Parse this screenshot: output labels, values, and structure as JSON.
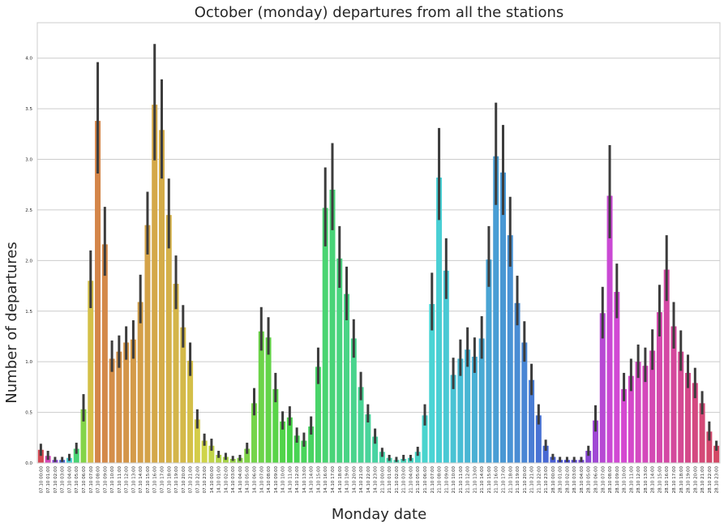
{
  "chart_data": {
    "type": "bar",
    "title": "October (monday) departures from all the stations",
    "xlabel": "Monday date",
    "ylabel": "Number of departures",
    "ylim": [
      0,
      4.35
    ],
    "yticks": [
      "0.0",
      "0.5",
      "1.0",
      "1.5",
      "2.0",
      "2.5",
      "3.0",
      "3.5",
      "4.0"
    ],
    "grid": "horizontal",
    "error_bars": true,
    "categories": [
      "07.10 00:00",
      "07.10 01:00",
      "07.10 02:00",
      "07.10 03:00",
      "07.10 04:00",
      "07.10 05:00",
      "07.10 06:00",
      "07.10 07:00",
      "07.10 08:00",
      "07.10 09:00",
      "07.10 10:00",
      "07.10 11:00",
      "07.10 12:00",
      "07.10 13:00",
      "07.10 14:00",
      "07.10 15:00",
      "07.10 16:00",
      "07.10 17:00",
      "07.10 18:00",
      "07.10 19:00",
      "07.10 20:00",
      "07.10 21:00",
      "07.10 22:00",
      "07.10 23:00",
      "14.10 00:00",
      "14.10 01:00",
      "14.10 02:00",
      "14.10 03:00",
      "14.10 04:00",
      "14.10 05:00",
      "14.10 06:00",
      "14.10 07:00",
      "14.10 08:00",
      "14.10 09:00",
      "14.10 10:00",
      "14.10 11:00",
      "14.10 12:00",
      "14.10 13:00",
      "14.10 14:00",
      "14.10 15:00",
      "14.10 16:00",
      "14.10 17:00",
      "14.10 18:00",
      "14.10 19:00",
      "14.10 20:00",
      "14.10 21:00",
      "14.10 22:00",
      "14.10 23:00",
      "21.10 00:00",
      "21.10 01:00",
      "21.10 02:00",
      "21.10 03:00",
      "21.10 04:00",
      "21.10 05:00",
      "21.10 06:00",
      "21.10 07:00",
      "21.10 08:00",
      "21.10 09:00",
      "21.10 10:00",
      "21.10 11:00",
      "21.10 12:00",
      "21.10 13:00",
      "21.10 14:00",
      "21.10 15:00",
      "21.10 16:00",
      "21.10 17:00",
      "21.10 18:00",
      "21.10 19:00",
      "21.10 20:00",
      "21.10 21:00",
      "21.10 22:00",
      "21.10 23:00",
      "28.10 00:00",
      "28.10 01:00",
      "28.10 02:00",
      "28.10 03:00",
      "28.10 04:00",
      "28.10 05:00",
      "28.10 06:00",
      "28.10 07:00",
      "28.10 08:00",
      "28.10 09:00",
      "28.10 10:00",
      "28.10 11:00",
      "28.10 12:00",
      "28.10 13:00",
      "28.10 14:00",
      "28.10 15:00",
      "28.10 16:00",
      "28.10 17:00",
      "28.10 18:00",
      "28.10 19:00",
      "28.10 20:00",
      "28.10 21:00",
      "28.10 22:00",
      "28.10 23:00"
    ],
    "values": [
      0.13,
      0.07,
      0.03,
      0.03,
      0.05,
      0.14,
      0.53,
      1.8,
      3.38,
      2.16,
      1.03,
      1.1,
      1.19,
      1.22,
      1.59,
      2.35,
      3.54,
      3.29,
      2.45,
      1.77,
      1.34,
      1.01,
      0.43,
      0.22,
      0.17,
      0.08,
      0.06,
      0.04,
      0.05,
      0.14,
      0.59,
      1.3,
      1.24,
      0.73,
      0.41,
      0.45,
      0.27,
      0.22,
      0.36,
      0.95,
      2.52,
      2.7,
      2.02,
      1.67,
      1.23,
      0.75,
      0.48,
      0.26,
      0.11,
      0.05,
      0.03,
      0.04,
      0.05,
      0.11,
      0.47,
      1.57,
      2.82,
      1.9,
      0.87,
      1.03,
      1.12,
      1.05,
      1.23,
      2.01,
      3.03,
      2.87,
      2.25,
      1.58,
      1.19,
      0.82,
      0.47,
      0.17,
      0.06,
      0.03,
      0.03,
      0.03,
      0.03,
      0.12,
      0.42,
      1.48,
      2.64,
      1.69,
      0.73,
      0.86,
      1.0,
      0.96,
      1.11,
      1.49,
      1.91,
      1.35,
      1.1,
      0.89,
      0.79,
      0.59,
      0.31,
      0.17
    ],
    "errors": [
      [
        0.07,
        0.19
      ],
      [
        0.03,
        0.12
      ],
      [
        0.01,
        0.06
      ],
      [
        0.01,
        0.06
      ],
      [
        0.02,
        0.09
      ],
      [
        0.09,
        0.2
      ],
      [
        0.41,
        0.68
      ],
      [
        1.53,
        2.1
      ],
      [
        2.86,
        3.96
      ],
      [
        1.85,
        2.53
      ],
      [
        0.9,
        1.21
      ],
      [
        0.94,
        1.26
      ],
      [
        1.02,
        1.35
      ],
      [
        1.03,
        1.41
      ],
      [
        1.38,
        1.86
      ],
      [
        2.06,
        2.68
      ],
      [
        2.99,
        4.14
      ],
      [
        2.81,
        3.79
      ],
      [
        2.12,
        2.81
      ],
      [
        1.52,
        2.05
      ],
      [
        1.14,
        1.56
      ],
      [
        0.86,
        1.19
      ],
      [
        0.34,
        0.53
      ],
      [
        0.17,
        0.29
      ],
      [
        0.12,
        0.24
      ],
      [
        0.05,
        0.12
      ],
      [
        0.03,
        0.1
      ],
      [
        0.02,
        0.07
      ],
      [
        0.02,
        0.08
      ],
      [
        0.09,
        0.2
      ],
      [
        0.47,
        0.74
      ],
      [
        1.11,
        1.54
      ],
      [
        1.07,
        1.44
      ],
      [
        0.6,
        0.89
      ],
      [
        0.33,
        0.51
      ],
      [
        0.37,
        0.56
      ],
      [
        0.2,
        0.35
      ],
      [
        0.16,
        0.3
      ],
      [
        0.28,
        0.46
      ],
      [
        0.78,
        1.14
      ],
      [
        2.14,
        2.92
      ],
      [
        2.3,
        3.16
      ],
      [
        1.73,
        2.34
      ],
      [
        1.41,
        1.94
      ],
      [
        1.04,
        1.42
      ],
      [
        0.62,
        0.9
      ],
      [
        0.4,
        0.58
      ],
      [
        0.19,
        0.34
      ],
      [
        0.06,
        0.15
      ],
      [
        0.02,
        0.08
      ],
      [
        0.01,
        0.06
      ],
      [
        0.02,
        0.08
      ],
      [
        0.02,
        0.08
      ],
      [
        0.07,
        0.16
      ],
      [
        0.37,
        0.58
      ],
      [
        1.31,
        1.88
      ],
      [
        2.4,
        3.31
      ],
      [
        1.62,
        2.22
      ],
      [
        0.73,
        1.04
      ],
      [
        0.86,
        1.22
      ],
      [
        0.95,
        1.34
      ],
      [
        0.89,
        1.24
      ],
      [
        1.03,
        1.45
      ],
      [
        1.74,
        2.34
      ],
      [
        2.55,
        3.56
      ],
      [
        2.45,
        3.34
      ],
      [
        1.94,
        2.63
      ],
      [
        1.36,
        1.85
      ],
      [
        1.0,
        1.4
      ],
      [
        0.67,
        0.98
      ],
      [
        0.38,
        0.58
      ],
      [
        0.12,
        0.23
      ],
      [
        0.03,
        0.09
      ],
      [
        0.01,
        0.06
      ],
      [
        0.01,
        0.06
      ],
      [
        0.01,
        0.06
      ],
      [
        0.01,
        0.06
      ],
      [
        0.07,
        0.17
      ],
      [
        0.31,
        0.57
      ],
      [
        1.23,
        1.74
      ],
      [
        2.22,
        3.14
      ],
      [
        1.43,
        1.97
      ],
      [
        0.61,
        0.89
      ],
      [
        0.71,
        1.03
      ],
      [
        0.84,
        1.17
      ],
      [
        0.8,
        1.14
      ],
      [
        0.92,
        1.32
      ],
      [
        1.25,
        1.76
      ],
      [
        1.6,
        2.25
      ],
      [
        1.13,
        1.59
      ],
      [
        0.91,
        1.31
      ],
      [
        0.74,
        1.07
      ],
      [
        0.64,
        0.94
      ],
      [
        0.48,
        0.71
      ],
      [
        0.22,
        0.41
      ],
      [
        0.12,
        0.22
      ]
    ]
  }
}
